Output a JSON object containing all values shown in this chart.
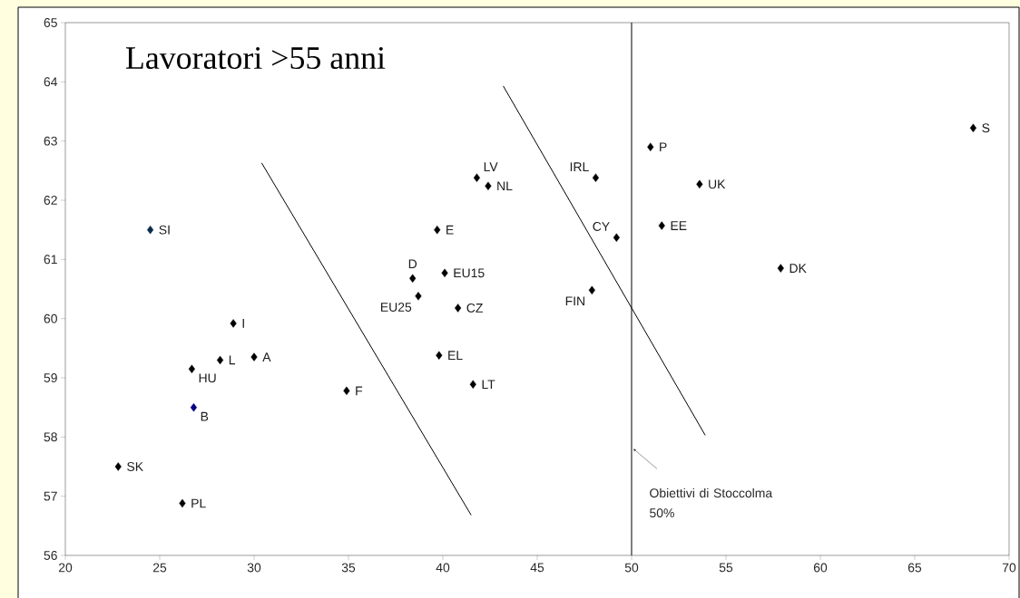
{
  "chart_data": {
    "type": "scatter",
    "title": "Lavoratori >55 anni",
    "marker": "diamond",
    "xlim": [
      20,
      70
    ],
    "xticks": [
      20,
      25,
      30,
      35,
      40,
      45,
      50,
      55,
      60,
      65,
      70
    ],
    "ylim": [
      56,
      65
    ],
    "yticks": [
      56,
      57,
      58,
      59,
      60,
      61,
      62,
      63,
      64,
      65
    ],
    "ref_lines": [
      {
        "axis": "x",
        "value": 50,
        "label": "Obiettivi di Stoccolma 50%",
        "color": "#000000"
      }
    ],
    "series": [
      {
        "name": "SI",
        "color": "#0a2a4a",
        "x": [
          24.5
        ],
        "values": [
          61.5
        ]
      },
      {
        "name": "I",
        "color": "#000000",
        "x": [
          28.9
        ],
        "values": [
          59.92
        ]
      },
      {
        "name": "L",
        "color": "#000000",
        "x": [
          28.2
        ],
        "values": [
          59.3
        ]
      },
      {
        "name": "A",
        "color": "#000000",
        "x": [
          30.0
        ],
        "values": [
          59.35
        ]
      },
      {
        "name": "HU",
        "color": "#000000",
        "x": [
          26.7
        ],
        "values": [
          59.15
        ]
      },
      {
        "name": "B",
        "color": "#000080",
        "x": [
          26.8
        ],
        "values": [
          58.5
        ]
      },
      {
        "name": "SK",
        "color": "#000000",
        "x": [
          22.8
        ],
        "values": [
          57.5
        ]
      },
      {
        "name": "PL",
        "color": "#000000",
        "x": [
          26.2
        ],
        "values": [
          56.88
        ]
      },
      {
        "name": "F",
        "color": "#000000",
        "x": [
          34.9
        ],
        "values": [
          58.78
        ]
      },
      {
        "name": "LV",
        "color": "#000000",
        "x": [
          41.8
        ],
        "values": [
          62.38
        ]
      },
      {
        "name": "NL",
        "color": "#000000",
        "x": [
          42.4
        ],
        "values": [
          62.24
        ]
      },
      {
        "name": "E",
        "color": "#000000",
        "x": [
          39.7
        ],
        "values": [
          61.5
        ]
      },
      {
        "name": "D",
        "color": "#000000",
        "x": [
          38.4
        ],
        "values": [
          60.68
        ]
      },
      {
        "name": "EU15",
        "color": "#000000",
        "x": [
          40.1
        ],
        "values": [
          60.77
        ]
      },
      {
        "name": "EU25",
        "color": "#000000",
        "x": [
          38.7
        ],
        "values": [
          60.38
        ]
      },
      {
        "name": "CZ",
        "color": "#000000",
        "x": [
          40.8
        ],
        "values": [
          60.18
        ]
      },
      {
        "name": "EL",
        "color": "#000000",
        "x": [
          39.8
        ],
        "values": [
          59.38
        ]
      },
      {
        "name": "LT",
        "color": "#000000",
        "x": [
          41.6
        ],
        "values": [
          58.89
        ]
      },
      {
        "name": "IRL",
        "color": "#000000",
        "x": [
          48.1
        ],
        "values": [
          62.38
        ]
      },
      {
        "name": "CY",
        "color": "#000000",
        "x": [
          49.2
        ],
        "values": [
          61.37
        ]
      },
      {
        "name": "FIN",
        "color": "#000000",
        "x": [
          47.9
        ],
        "values": [
          60.48
        ]
      },
      {
        "name": "P",
        "color": "#000000",
        "x": [
          51.0
        ],
        "values": [
          62.9
        ]
      },
      {
        "name": "EE",
        "color": "#000000",
        "x": [
          51.6
        ],
        "values": [
          61.57
        ]
      },
      {
        "name": "UK",
        "color": "#000000",
        "x": [
          53.6
        ],
        "values": [
          62.27
        ]
      },
      {
        "name": "DK",
        "color": "#000000",
        "x": [
          57.9
        ],
        "values": [
          60.85
        ]
      },
      {
        "name": "S",
        "color": "#000000",
        "x": [
          68.1
        ],
        "values": [
          63.22
        ]
      },
      {
        "type": "line",
        "marker": "none",
        "color": "#000000",
        "x": [
          30.4,
          41.5
        ],
        "values": [
          62.63,
          56.68
        ]
      },
      {
        "type": "line",
        "marker": "none",
        "color": "#000000",
        "x": [
          43.2,
          53.9
        ],
        "values": [
          63.93,
          58.03
        ]
      }
    ]
  }
}
